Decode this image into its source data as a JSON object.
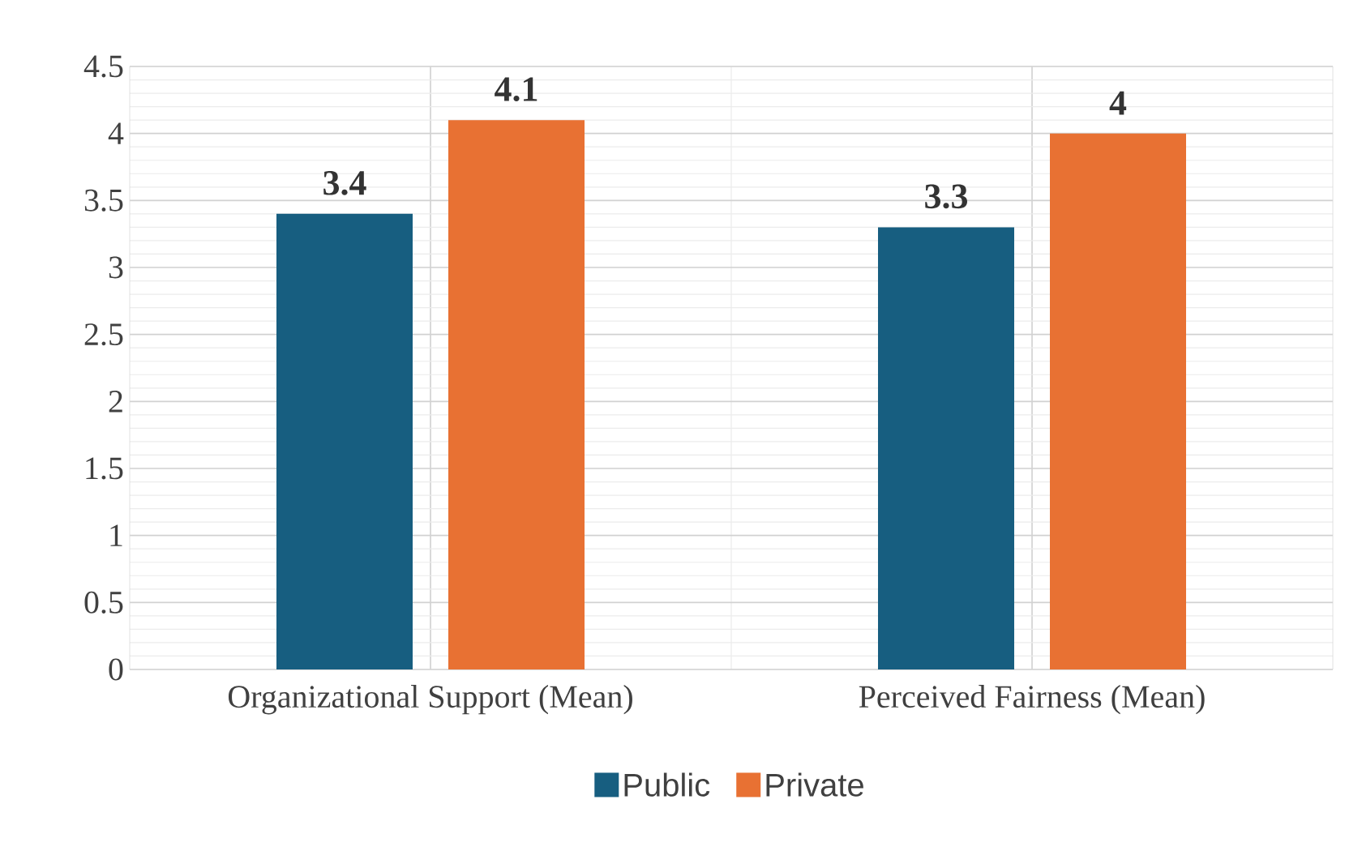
{
  "chart_data": {
    "type": "bar",
    "categories": [
      "Organizational Support (Mean)",
      "Perceived Fairness (Mean)"
    ],
    "series": [
      {
        "name": "Public",
        "color": "#175e80",
        "values": [
          3.4,
          3.3
        ]
      },
      {
        "name": "Private",
        "color": "#e87133",
        "values": [
          4.1,
          4
        ]
      }
    ],
    "ylim": [
      0,
      4.5
    ],
    "yticks": [
      0,
      0.5,
      1,
      1.5,
      2,
      2.5,
      3,
      3.5,
      4,
      4.5
    ],
    "grid": true,
    "legend": "bottom",
    "data_labels": true
  }
}
